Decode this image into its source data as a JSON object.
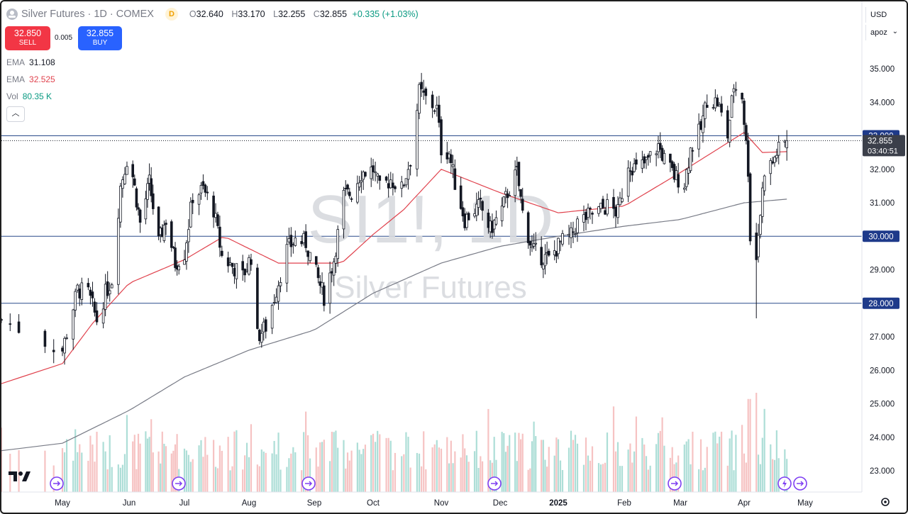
{
  "header": {
    "title": "Silver Futures · 1D · COMEX",
    "exchange_badge": "D",
    "ohlc": {
      "o": "32.640",
      "h": "33.170",
      "l": "32.255",
      "c": "32.855",
      "change": "+0.335 (+1.03%)"
    },
    "labels": {
      "o": "O",
      "h": "H",
      "l": "L",
      "c": "C"
    }
  },
  "trade": {
    "sell_price": "32.850",
    "sell_label": "SELL",
    "spread": "0.005",
    "buy_price": "32.855",
    "buy_label": "BUY",
    "sell_color": "#f23645",
    "buy_color": "#2962ff"
  },
  "indicators": [
    {
      "name": "EMA",
      "value": "31.108",
      "color": "#787b86"
    },
    {
      "name": "EMA",
      "value": "32.525",
      "color": "#e0424d"
    },
    {
      "name": "Vol",
      "value": "80.35 K",
      "color": "#089981"
    }
  ],
  "collapse_icon": "chevron-up-icon",
  "top_right": {
    "currency": "USD",
    "scale": "apoz"
  },
  "watermark": {
    "symbol": "SI1!, 1D",
    "name": "Silver Futures"
  },
  "price_tag": {
    "price": "32.855",
    "countdown": "03:40:51"
  },
  "hline_labels": [
    "33.000",
    "30.000",
    "28.000"
  ],
  "colors": {
    "up": "#089981",
    "down": "#131722",
    "ema_short": "#e0424d",
    "ema_long": "#787b86",
    "hline": "#2a4a8a",
    "vol_up": "#9fd8d0",
    "vol_down": "#f5b8b8"
  },
  "chart_data": {
    "type": "candlestick",
    "title": "Silver Futures",
    "price_axis_ticks": [
      "35.000",
      "34.000",
      "33.000",
      "32.000",
      "31.000",
      "30.000",
      "29.000",
      "28.000",
      "27.000",
      "26.000",
      "25.000",
      "24.000",
      "23.000"
    ],
    "time_axis_ticks": [
      "May",
      "Jun",
      "Jul",
      "Aug",
      "Sep",
      "Oct",
      "Nov",
      "Dec",
      "2025",
      "Feb",
      "Mar",
      "Apr",
      "May"
    ],
    "horizontal_lines": [
      33.0,
      30.0,
      28.0
    ],
    "last_price": 32.855,
    "close_path": [
      [
        "2024-04-24",
        27.5
      ],
      [
        "2024-05-01",
        26.6
      ],
      [
        "2024-05-08",
        28.4
      ],
      [
        "2024-05-13",
        28.3
      ],
      [
        "2024-05-17",
        27.5
      ],
      [
        "2024-05-21",
        28.3
      ],
      [
        "2024-05-24",
        28.7
      ],
      [
        "2024-05-28",
        31.5
      ],
      [
        "2024-05-31",
        32.3
      ],
      [
        "2024-06-03",
        31.8
      ],
      [
        "2024-06-07",
        30.4
      ],
      [
        "2024-06-12",
        31.6
      ],
      [
        "2024-06-17",
        29.8
      ],
      [
        "2024-06-21",
        30.5
      ],
      [
        "2024-06-26",
        29.2
      ],
      [
        "2024-07-01",
        29.5
      ],
      [
        "2024-07-05",
        31.2
      ],
      [
        "2024-07-10",
        31.4
      ],
      [
        "2024-07-15",
        30.8
      ],
      [
        "2024-07-19",
        29.4
      ],
      [
        "2024-07-24",
        29.1
      ],
      [
        "2024-07-29",
        28.8
      ],
      [
        "2024-08-02",
        29.4
      ],
      [
        "2024-08-05",
        27.0
      ],
      [
        "2024-08-09",
        27.3
      ],
      [
        "2024-08-14",
        28.4
      ],
      [
        "2024-08-19",
        29.6
      ],
      [
        "2024-08-23",
        29.9
      ],
      [
        "2024-08-28",
        29.8
      ],
      [
        "2024-09-03",
        28.7
      ],
      [
        "2024-09-06",
        28.2
      ],
      [
        "2024-09-11",
        29.3
      ],
      [
        "2024-09-16",
        31.2
      ],
      [
        "2024-09-20",
        31.3
      ],
      [
        "2024-09-25",
        31.9
      ],
      [
        "2024-10-01",
        32.0
      ],
      [
        "2024-10-04",
        31.4
      ],
      [
        "2024-10-09",
        31.7
      ],
      [
        "2024-10-14",
        31.4
      ],
      [
        "2024-10-18",
        32.3
      ],
      [
        "2024-10-22",
        34.3
      ],
      [
        "2024-10-25",
        34.1
      ],
      [
        "2024-10-30",
        33.8
      ],
      [
        "2024-11-01",
        32.6
      ],
      [
        "2024-11-05",
        32.5
      ],
      [
        "2024-11-08",
        31.6
      ],
      [
        "2024-11-13",
        30.5
      ],
      [
        "2024-11-18",
        30.8
      ],
      [
        "2024-11-21",
        30.9
      ],
      [
        "2024-11-26",
        30.2
      ],
      [
        "2024-12-02",
        30.8
      ],
      [
        "2024-12-05",
        31.3
      ],
      [
        "2024-12-10",
        31.9
      ],
      [
        "2024-12-13",
        30.7
      ],
      [
        "2024-12-18",
        29.6
      ],
      [
        "2024-12-23",
        29.4
      ],
      [
        "2024-12-27",
        29.3
      ],
      [
        "2025-01-02",
        29.8
      ],
      [
        "2025-01-07",
        30.0
      ],
      [
        "2025-01-10",
        30.4
      ],
      [
        "2025-01-15",
        30.6
      ],
      [
        "2025-01-21",
        30.8
      ],
      [
        "2025-01-24",
        30.9
      ],
      [
        "2025-01-29",
        30.7
      ],
      [
        "2025-02-03",
        32.2
      ],
      [
        "2025-02-07",
        32.0
      ],
      [
        "2025-02-12",
        32.2
      ],
      [
        "2025-02-18",
        32.7
      ],
      [
        "2025-02-21",
        32.3
      ],
      [
        "2025-02-26",
        31.8
      ],
      [
        "2025-03-03",
        31.6
      ],
      [
        "2025-03-06",
        32.6
      ],
      [
        "2025-03-11",
        33.2
      ],
      [
        "2025-03-14",
        34.1
      ],
      [
        "2025-03-19",
        34.0
      ],
      [
        "2025-03-24",
        33.0
      ],
      [
        "2025-03-27",
        34.5
      ],
      [
        "2025-03-31",
        34.2
      ],
      [
        "2025-04-03",
        32.0
      ],
      [
        "2025-04-04",
        30.0
      ],
      [
        "2025-04-07",
        29.5
      ],
      [
        "2025-04-09",
        30.7
      ],
      [
        "2025-04-11",
        32.0
      ],
      [
        "2025-04-15",
        32.2
      ],
      [
        "2025-04-17",
        32.5
      ],
      [
        "2025-04-22",
        32.86
      ]
    ],
    "ema_long_path": [
      [
        "2024-04-24",
        23.6
      ],
      [
        "2024-06-01",
        24.8
      ],
      [
        "2024-07-01",
        25.8
      ],
      [
        "2024-08-01",
        26.6
      ],
      [
        "2024-09-01",
        27.2
      ],
      [
        "2024-10-01",
        28.3
      ],
      [
        "2024-11-01",
        29.2
      ],
      [
        "2024-12-01",
        29.7
      ],
      [
        "2025-01-01",
        30.0
      ],
      [
        "2025-02-01",
        30.3
      ],
      [
        "2025-03-01",
        30.5
      ],
      [
        "2025-04-01",
        31.0
      ],
      [
        "2025-04-22",
        31.108
      ]
    ],
    "ema_short_path": [
      [
        "2024-04-24",
        25.6
      ],
      [
        "2024-05-15",
        27.4
      ],
      [
        "2024-06-01",
        28.6
      ],
      [
        "2024-07-01",
        29.3
      ],
      [
        "2024-07-20",
        30.0
      ],
      [
        "2024-08-15",
        29.2
      ],
      [
        "2024-09-15",
        29.2
      ],
      [
        "2024-10-15",
        30.8
      ],
      [
        "2024-11-01",
        32.0
      ],
      [
        "2024-12-01",
        31.3
      ],
      [
        "2025-01-01",
        30.7
      ],
      [
        "2025-02-01",
        30.9
      ],
      [
        "2025-03-01",
        31.9
      ],
      [
        "2025-04-01",
        33.1
      ],
      [
        "2025-04-10",
        32.5
      ],
      [
        "2025-04-22",
        32.525
      ]
    ],
    "volume_unit": "K",
    "last_volume": 80.35
  }
}
